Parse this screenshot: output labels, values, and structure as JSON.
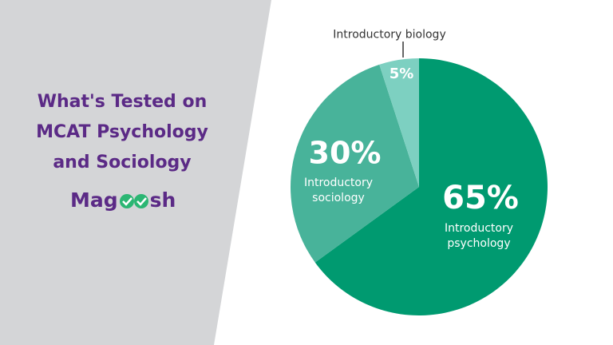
{
  "chart_data": {
    "type": "pie",
    "title": "What's Tested on MCAT Psychology and Sociology",
    "logo": [
      "Mag",
      "sh"
    ],
    "categories": [
      "Introductory psychology",
      "Introductory sociology",
      "Introductory biology"
    ],
    "values": [
      65,
      30,
      5
    ],
    "value_labels": [
      "65%",
      "30%",
      "5%"
    ],
    "colors": [
      "#009a70",
      "#48b39a",
      "#7dd0c1"
    ]
  }
}
